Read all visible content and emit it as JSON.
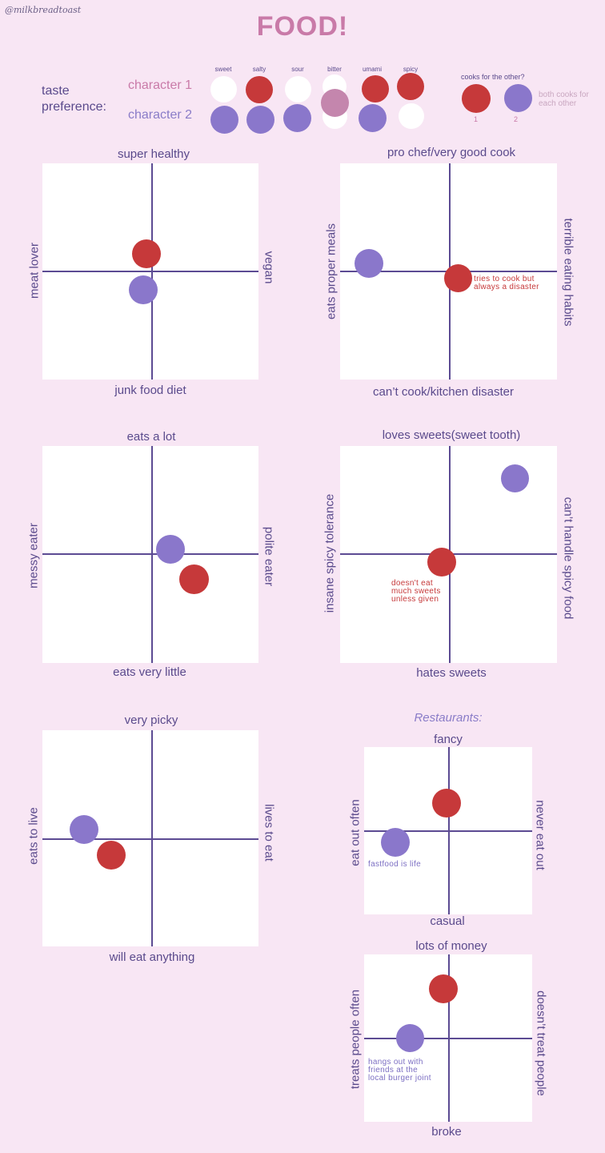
{
  "watermark": "@milkbreadtoast",
  "title": "FOOD!",
  "colors": {
    "character_1": "#c6393a",
    "character_2": "#8a77cb",
    "mixed": "#c486ad",
    "empty": "#ffffff",
    "axis": "#5c4b93",
    "background": "#f8e6f4"
  },
  "taste": {
    "label_line1": "taste",
    "label_line2": "preference:",
    "character_1_label": "character 1",
    "character_2_label": "character 2",
    "columns": [
      "sweet",
      "salty",
      "sour",
      "bitter",
      "umami",
      "spicy"
    ],
    "character_1": [
      "white",
      "red",
      "white",
      "white",
      "red",
      "red"
    ],
    "character_2": [
      "purple",
      "purple",
      "purple",
      "white",
      "purple",
      "white"
    ],
    "bitter_shared": "mixed"
  },
  "cooks": {
    "label": "cooks for the other?",
    "num_1": "1",
    "num_2": "2",
    "note": "both cooks for each other"
  },
  "charts": {
    "health": {
      "top": "super healthy",
      "bottom": "junk food diet",
      "left": "meat lover",
      "right": "vegan"
    },
    "cooking": {
      "top": "pro chef/very good cook",
      "bottom": "can’t cook/kitchen disaster",
      "left": "eats proper meals",
      "right": "terrible eating habits",
      "note": "tries to cook but\nalways a disaster"
    },
    "amount": {
      "top": "eats a lot",
      "bottom": "eats very little",
      "left": "messy eater",
      "right": "polite eater"
    },
    "sweets": {
      "top": "loves sweets(sweet tooth)",
      "bottom": "hates sweets",
      "left": "insane spicy tolerance",
      "right": "can’t handle spicy food",
      "note": "doesn't eat\nmuch sweets\nunless given"
    },
    "picky": {
      "top": "very picky",
      "bottom": "will eat anything",
      "left": "eats to live",
      "right": "lives to eat"
    },
    "restaurants_title": "Restaurants:",
    "restaurants": {
      "top": "fancy",
      "bottom": "casual",
      "left": "eat out often",
      "right": "never eat out",
      "note": "fastfood is life"
    },
    "money": {
      "top": "lots of money",
      "bottom": "broke",
      "left": "treats people often",
      "right": "doesn’t treat people",
      "note": "hangs out with\nfriends at the\nlocal burger joint"
    }
  }
}
